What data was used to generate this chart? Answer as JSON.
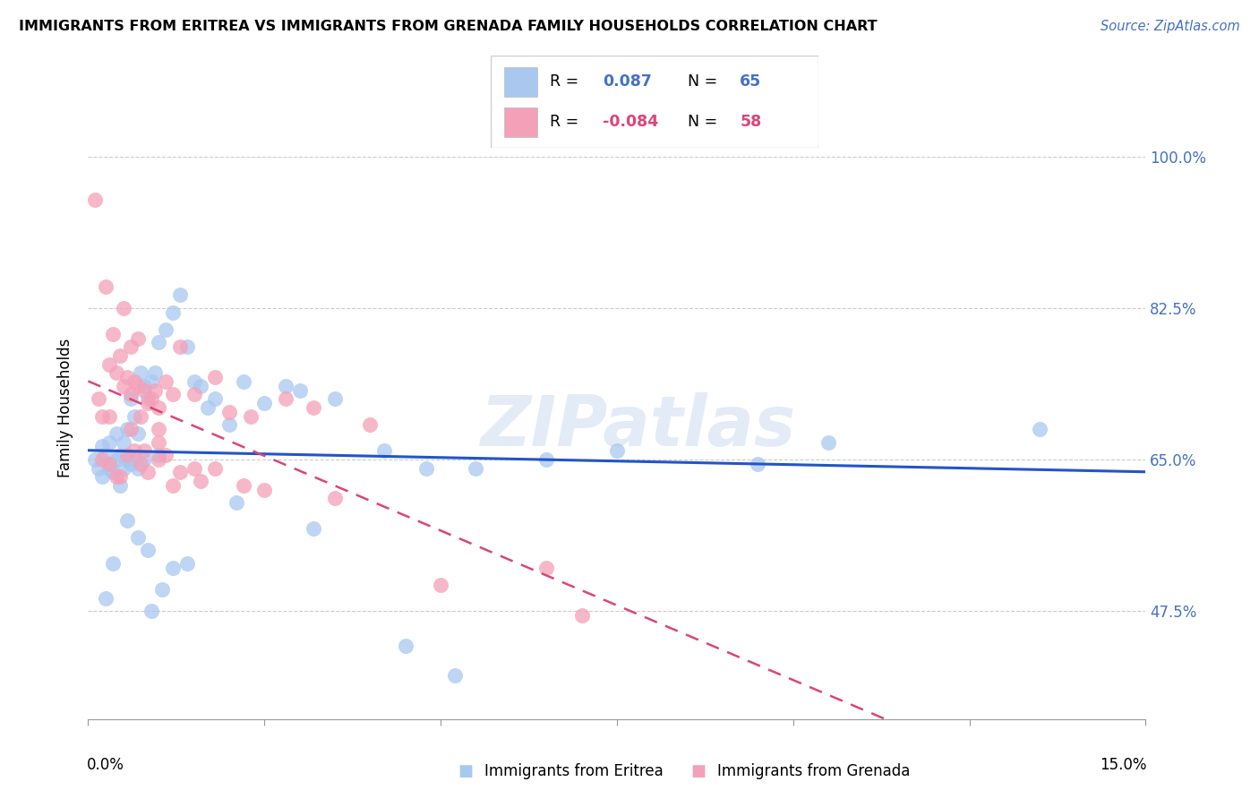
{
  "title": "IMMIGRANTS FROM ERITREA VS IMMIGRANTS FROM GRENADA FAMILY HOUSEHOLDS CORRELATION CHART",
  "source": "Source: ZipAtlas.com",
  "ylabel": "Family Households",
  "y_ticks": [
    47.5,
    65.0,
    82.5,
    100.0
  ],
  "y_tick_labels": [
    "47.5%",
    "65.0%",
    "82.5%",
    "100.0%"
  ],
  "xlim": [
    0.0,
    15.0
  ],
  "ylim": [
    35.0,
    107.0
  ],
  "color_eritrea": "#A8C8F0",
  "color_grenada": "#F4A0B8",
  "trendline_eritrea_color": "#2255CC",
  "trendline_grenada_color": "#DD4477",
  "watermark": "ZIPatlas",
  "bottom_label_eritrea": "Immigrants from Eritrea",
  "bottom_label_grenada": "Immigrants from Grenada",
  "eritrea_x": [
    0.1,
    0.15,
    0.2,
    0.2,
    0.25,
    0.3,
    0.3,
    0.35,
    0.4,
    0.4,
    0.45,
    0.45,
    0.5,
    0.5,
    0.55,
    0.55,
    0.6,
    0.6,
    0.65,
    0.65,
    0.7,
    0.7,
    0.75,
    0.8,
    0.8,
    0.85,
    0.9,
    0.95,
    1.0,
    1.0,
    1.1,
    1.2,
    1.3,
    1.4,
    1.5,
    1.6,
    1.7,
    1.8,
    2.0,
    2.2,
    2.5,
    2.8,
    3.0,
    3.5,
    4.2,
    4.8,
    5.5,
    6.5,
    7.5,
    9.5,
    10.5,
    13.5,
    0.25,
    0.35,
    0.55,
    0.7,
    0.85,
    0.9,
    1.05,
    1.2,
    1.4,
    2.1,
    3.2,
    4.5,
    5.2
  ],
  "eritrea_y": [
    65.0,
    64.0,
    63.0,
    66.5,
    65.5,
    64.0,
    67.0,
    63.5,
    65.0,
    68.0,
    65.5,
    62.0,
    64.0,
    67.0,
    65.0,
    68.5,
    64.5,
    72.0,
    65.0,
    70.0,
    64.0,
    68.0,
    75.0,
    65.0,
    73.5,
    72.0,
    74.0,
    75.0,
    65.5,
    78.5,
    80.0,
    82.0,
    84.0,
    78.0,
    74.0,
    73.5,
    71.0,
    72.0,
    69.0,
    74.0,
    71.5,
    73.5,
    73.0,
    72.0,
    66.0,
    64.0,
    64.0,
    65.0,
    66.0,
    64.5,
    67.0,
    68.5,
    49.0,
    53.0,
    58.0,
    56.0,
    54.5,
    47.5,
    50.0,
    52.5,
    53.0,
    60.0,
    57.0,
    43.5,
    40.0
  ],
  "grenada_x": [
    0.1,
    0.15,
    0.2,
    0.25,
    0.3,
    0.3,
    0.35,
    0.4,
    0.45,
    0.5,
    0.5,
    0.55,
    0.6,
    0.6,
    0.65,
    0.7,
    0.7,
    0.75,
    0.8,
    0.85,
    0.9,
    0.95,
    1.0,
    1.0,
    1.1,
    1.2,
    1.3,
    1.5,
    1.8,
    2.0,
    2.3,
    2.8,
    3.2,
    4.0,
    0.2,
    0.3,
    0.4,
    0.55,
    0.65,
    0.75,
    0.85,
    1.0,
    1.1,
    1.3,
    1.5,
    1.8,
    2.2,
    2.5,
    3.5,
    5.0,
    6.5,
    7.0,
    0.45,
    0.6,
    0.8,
    1.0,
    1.2,
    1.6
  ],
  "grenada_y": [
    95.0,
    72.0,
    70.0,
    85.0,
    76.0,
    70.0,
    79.5,
    75.0,
    77.0,
    73.5,
    82.5,
    74.5,
    72.5,
    78.0,
    74.0,
    73.5,
    79.0,
    70.0,
    73.0,
    71.5,
    72.0,
    73.0,
    68.5,
    71.0,
    74.0,
    72.5,
    78.0,
    72.5,
    74.5,
    70.5,
    70.0,
    72.0,
    71.0,
    69.0,
    65.0,
    64.5,
    63.0,
    65.5,
    66.0,
    64.5,
    63.5,
    65.0,
    65.5,
    63.5,
    64.0,
    64.0,
    62.0,
    61.5,
    60.5,
    50.5,
    52.5,
    47.0,
    63.0,
    68.5,
    66.0,
    67.0,
    62.0,
    62.5
  ]
}
